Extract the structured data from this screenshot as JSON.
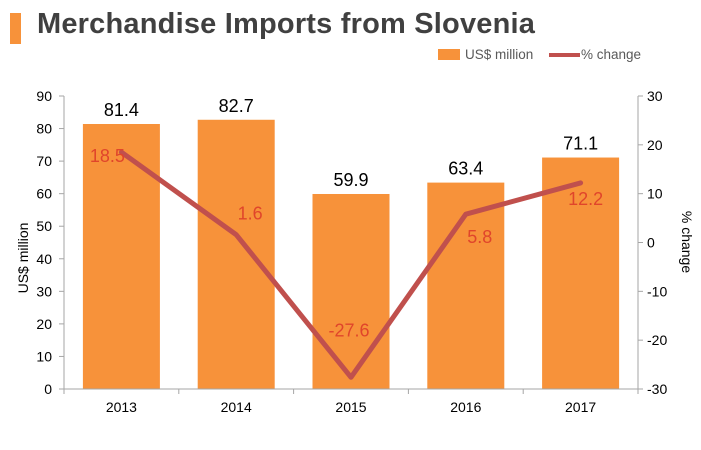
{
  "chart_data": {
    "type": "bar+line",
    "title": "Merchandise Imports from Slovenia",
    "categories": [
      "2013",
      "2014",
      "2015",
      "2016",
      "2017"
    ],
    "series": [
      {
        "name": "US$ million",
        "type": "bar",
        "axis": "left",
        "values": [
          81.4,
          82.7,
          59.9,
          63.4,
          71.1
        ],
        "color": "#f7923a"
      },
      {
        "name": "% change",
        "type": "line",
        "axis": "right",
        "values": [
          18.5,
          1.6,
          -27.6,
          5.8,
          12.2
        ],
        "color": "#c0504d"
      }
    ],
    "ylabel": "US$ million",
    "y2label": "% change",
    "ylim": [
      0,
      90
    ],
    "y2lim": [
      -30,
      30
    ],
    "yticks": [
      0,
      10,
      20,
      30,
      40,
      50,
      60,
      70,
      80,
      90
    ],
    "y2ticks": [
      -30,
      -20,
      -10,
      0,
      10,
      20,
      30
    ],
    "legend_position": "top-right",
    "grid": false,
    "bar_label_color": "#000000",
    "line_label_color": "#e0452b"
  }
}
